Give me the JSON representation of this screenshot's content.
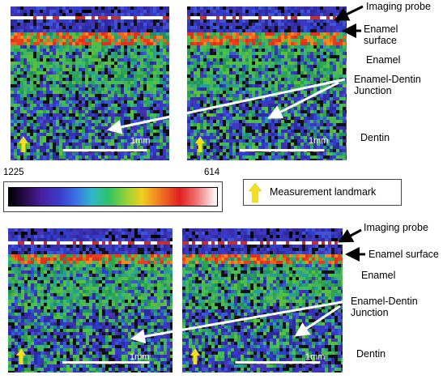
{
  "panels": {
    "top_left": {
      "scale_label": "1mm"
    },
    "top_right": {
      "scale_label": "1mm"
    },
    "bottom_left": {
      "scale_label": "1mm"
    },
    "bottom_right": {
      "scale_label": "1mm"
    }
  },
  "annotations_top": {
    "imaging_probe": "Imaging probe",
    "enamel_surface_line1": "Enamel",
    "enamel_surface_line2": "surface",
    "enamel": "Enamel",
    "edj_line1": "Enamel-Dentin",
    "edj_line2": "Junction",
    "dentin": "Dentin"
  },
  "annotations_bottom": {
    "imaging_probe": "Imaging probe",
    "enamel_surface": "Enamel surface",
    "enamel": "Enamel",
    "edj_line1": "Enamel-Dentin",
    "edj_line2": "Junction",
    "dentin": "Dentin"
  },
  "colorbar": {
    "left_value": "1225",
    "right_value": "614"
  },
  "legend": {
    "label": "Measurement landmark",
    "icon": "yellow-up-arrow-icon",
    "icon_color": "#f2e01c"
  },
  "colors": {
    "arrow_white": "#ffffff",
    "arrow_black": "#000000"
  }
}
